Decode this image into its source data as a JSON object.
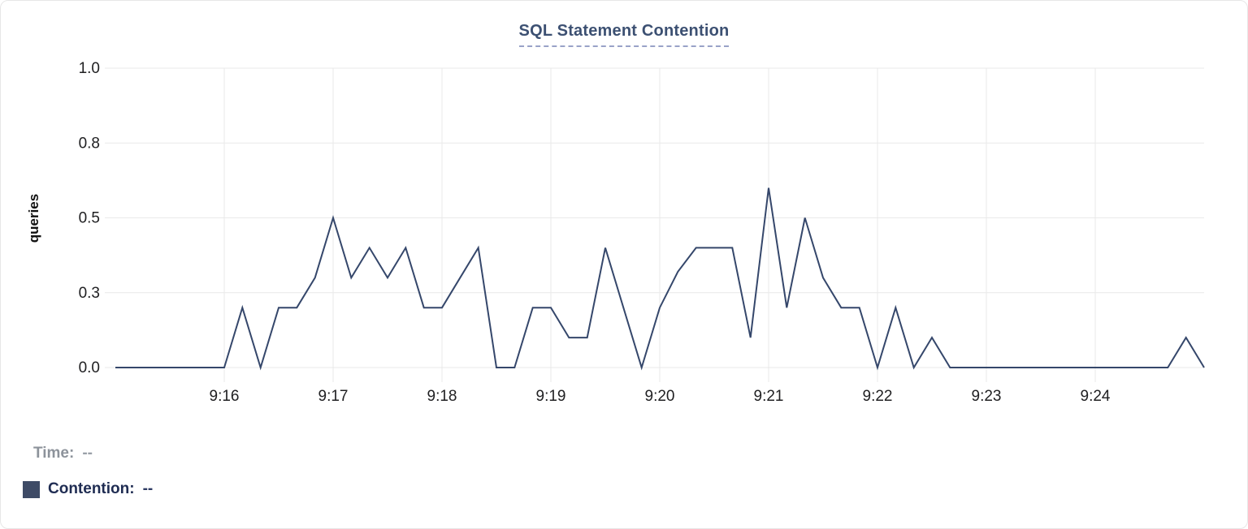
{
  "card": {
    "title": "SQL Statement Contention"
  },
  "chart_data": {
    "type": "line",
    "title": "SQL Statement Contention",
    "xlabel": "",
    "ylabel": "queries",
    "ylim": [
      0,
      1
    ],
    "grid": true,
    "legend_position": "bottom-left",
    "line_color": "#35476b",
    "grid_color": "#e9e9e9",
    "tick_color": "#202022",
    "x_tick_labels": [
      "9:16",
      "9:17",
      "9:18",
      "9:19",
      "9:20",
      "9:21",
      "9:22",
      "9:23",
      "9:24"
    ],
    "y_tick_labels": [
      "1.0",
      "0.8",
      "0.5",
      "0.3",
      "0.0"
    ],
    "y_tick_values": [
      1.0,
      0.75,
      0.5,
      0.25,
      0.0
    ],
    "x_start": "9:15:00",
    "x_end": "9:25:00",
    "x_interval_seconds": 10,
    "series": [
      {
        "name": "Contention",
        "times": [
          "9:15:00",
          "9:15:10",
          "9:15:20",
          "9:15:30",
          "9:15:40",
          "9:15:50",
          "9:16:00",
          "9:16:10",
          "9:16:20",
          "9:16:30",
          "9:16:40",
          "9:16:50",
          "9:17:00",
          "9:17:10",
          "9:17:20",
          "9:17:30",
          "9:17:40",
          "9:17:50",
          "9:18:00",
          "9:18:10",
          "9:18:20",
          "9:18:30",
          "9:18:40",
          "9:18:50",
          "9:19:00",
          "9:19:10",
          "9:19:20",
          "9:19:30",
          "9:19:40",
          "9:19:50",
          "9:20:00",
          "9:20:10",
          "9:20:20",
          "9:20:30",
          "9:20:40",
          "9:20:50",
          "9:21:00",
          "9:21:10",
          "9:21:20",
          "9:21:30",
          "9:21:40",
          "9:21:50",
          "9:22:00",
          "9:22:10",
          "9:22:20",
          "9:22:30",
          "9:22:40",
          "9:22:50",
          "9:23:00",
          "9:23:10",
          "9:23:20",
          "9:23:30",
          "9:23:40",
          "9:23:50",
          "9:24:00",
          "9:24:10",
          "9:24:20",
          "9:24:30",
          "9:24:40",
          "9:24:50",
          "9:25:00"
        ],
        "values": [
          0,
          0,
          0,
          0,
          0,
          0,
          0,
          0.2,
          0,
          0.2,
          0.2,
          0.3,
          0.5,
          0.3,
          0.4,
          0.3,
          0.4,
          0.2,
          0.2,
          0.3,
          0.4,
          0,
          0,
          0.2,
          0.2,
          0.1,
          0.1,
          0.4,
          0.2,
          0,
          0.2,
          0.32,
          0.4,
          0.4,
          0.4,
          0.1,
          0.6,
          0.2,
          0.5,
          0.3,
          0.2,
          0.2,
          0,
          0.2,
          0,
          0.1,
          0,
          0,
          0,
          0,
          0,
          0,
          0,
          0,
          0,
          0,
          0,
          0,
          0,
          0.1,
          0
        ]
      }
    ]
  },
  "legend": {
    "time_label": "Time:",
    "time_value": "--",
    "contention_label": "Contention:",
    "contention_value": "--",
    "swatch_color": "#3e4b66"
  }
}
